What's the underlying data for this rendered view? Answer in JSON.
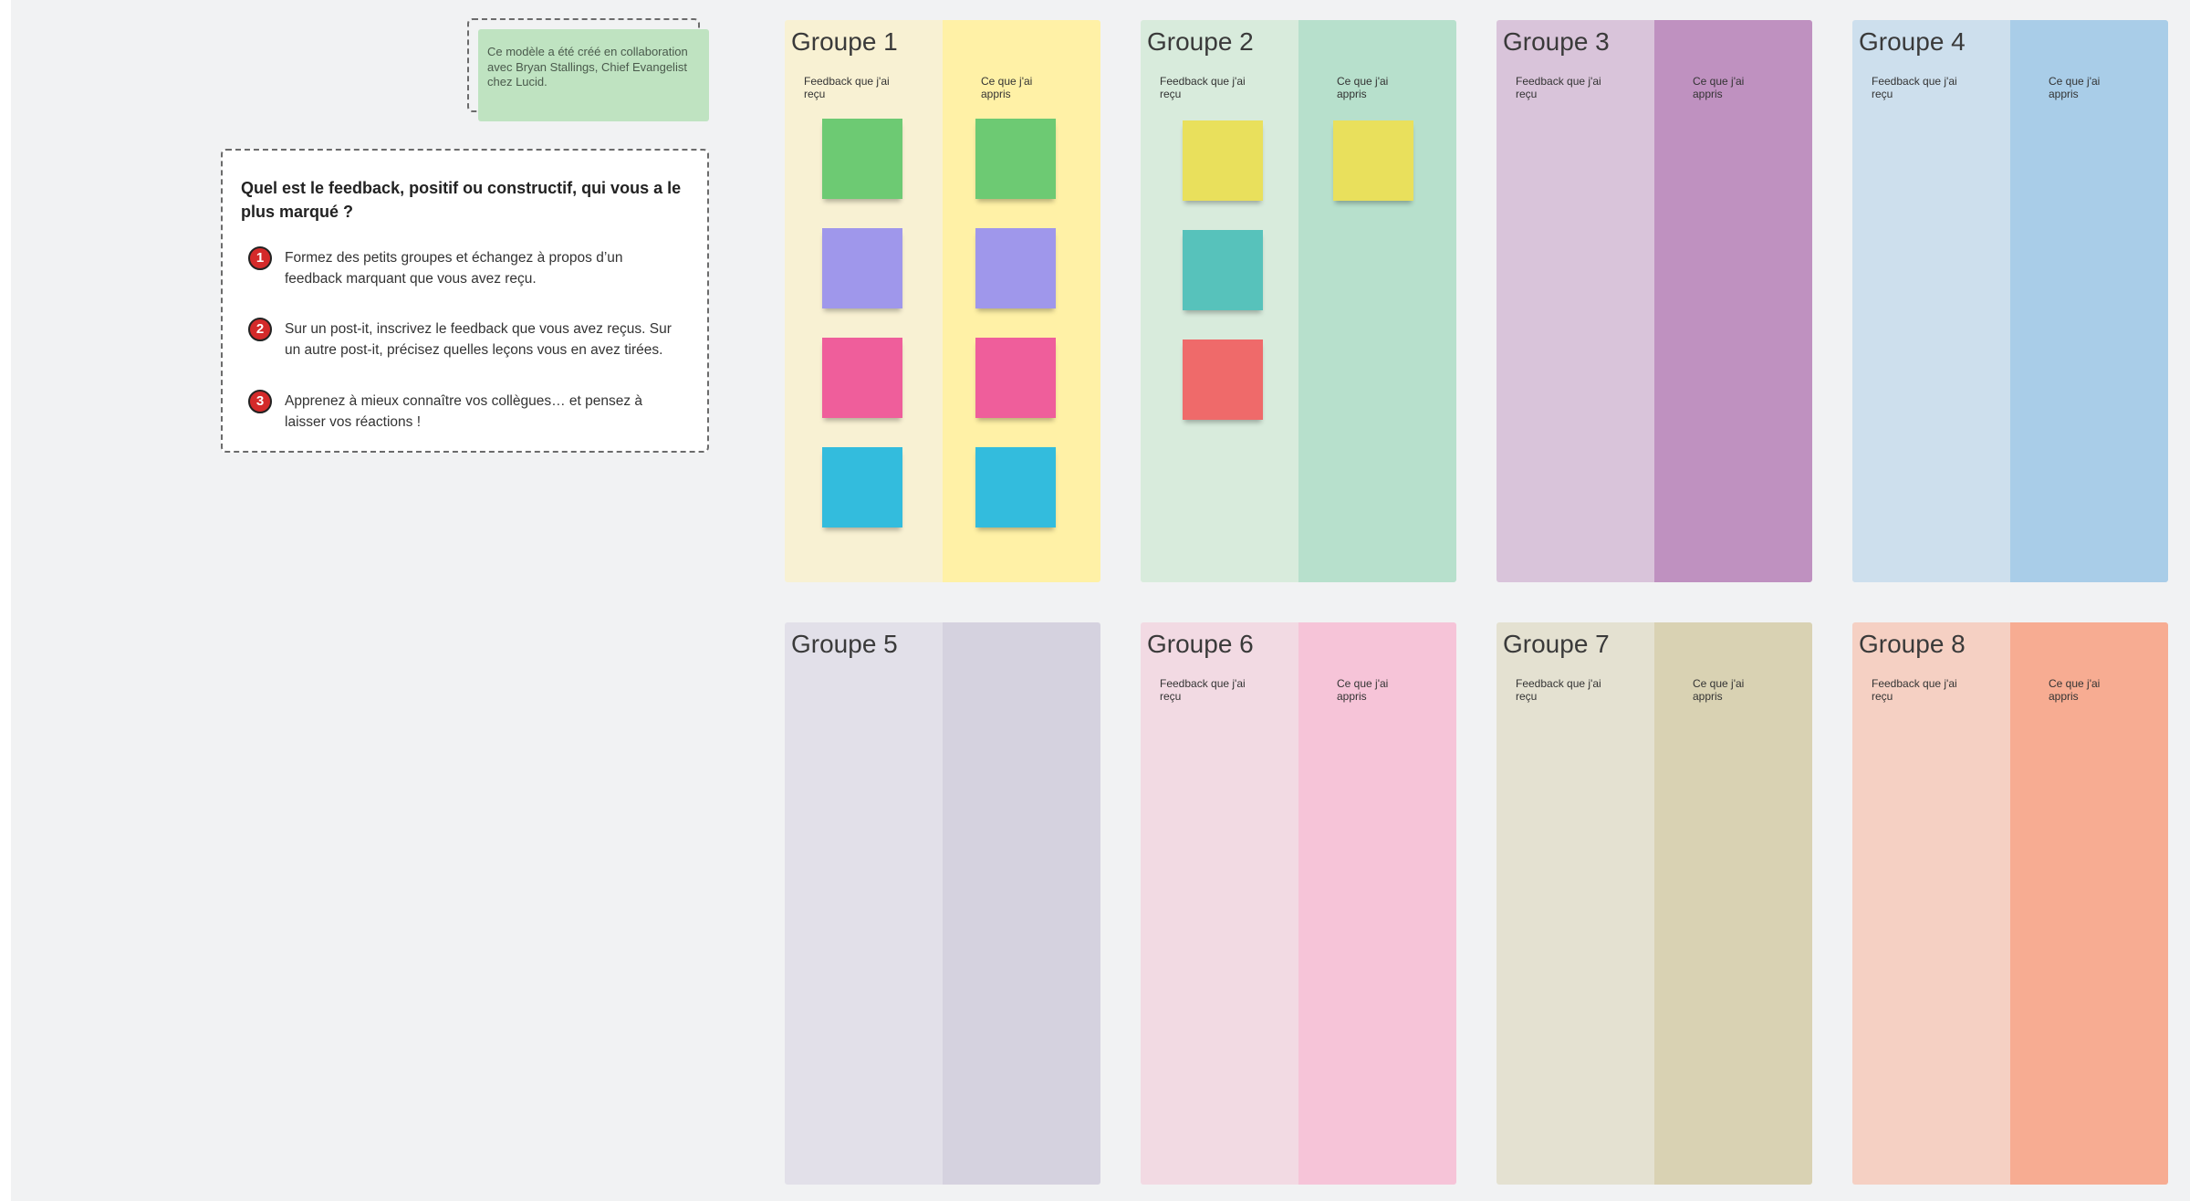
{
  "attribution": {
    "text": "Ce modèle a été créé en collaboration avec Bryan Stallings, Chief Evangelist chez Lucid."
  },
  "instructions": {
    "title": "Quel est le feedback, positif ou constructif, qui vous a le plus marqué ?",
    "steps": [
      {
        "number": "1",
        "text": "Formez des petits groupes et échangez à propos d’un feedback marquant que vous avez reçu."
      },
      {
        "number": "2",
        "text": "Sur un post-it, inscrivez le feedback que vous avez reçus. Sur un autre post-it, précisez quelles leçons vous en avez tirées."
      },
      {
        "number": "3",
        "text": "Apprenez à mieux connaître vos collègues… et pensez à laisser vos réactions !"
      }
    ]
  },
  "groups": [
    {
      "title": "Groupe 1",
      "left_label": "Feedback que j'ai reçu",
      "right_label": "Ce que j'ai appris",
      "left_color": "#f8f1d3",
      "right_color": "#fff1a6",
      "left_stickies": [
        "#6dca73",
        "#9f97eb",
        "#ef5e9b",
        "#33bcdd"
      ],
      "right_stickies": [
        "#6dca73",
        "#9f97eb",
        "#ef5e9b",
        "#33bcdd"
      ]
    },
    {
      "title": "Groupe 2",
      "left_label": "Feedback que j'ai reçu",
      "right_label": "Ce que j'ai appris",
      "left_color": "#d8ebdc",
      "right_color": "#b7e0cc",
      "left_stickies": [
        "#e9e05c",
        "#57c2bb",
        "#ef6a6a"
      ],
      "right_stickies": [
        "#e9e05c"
      ]
    },
    {
      "title": "Groupe 3",
      "left_label": "Feedback que j'ai reçu",
      "right_label": "Ce que j'ai appris",
      "left_color": "#d9c4da",
      "right_color": "#bf91c0",
      "left_stickies": [],
      "right_stickies": []
    },
    {
      "title": "Groupe 4",
      "left_label": "Feedback que j'ai reçu",
      "right_label": "Ce que j'ai appris",
      "left_color": "#cddfed",
      "right_color": "#a9cde8",
      "left_stickies": [],
      "right_stickies": []
    },
    {
      "title": "Groupe 5",
      "left_label": "",
      "right_label": "",
      "left_color": "#e2e0e9",
      "right_color": "#d5d2df",
      "left_stickies": [],
      "right_stickies": []
    },
    {
      "title": "Groupe 6",
      "left_label": "Feedback que j'ai reçu",
      "right_label": "Ce que j'ai appris",
      "left_color": "#f2dae3",
      "right_color": "#f6c4d8",
      "left_stickies": [],
      "right_stickies": []
    },
    {
      "title": "Groupe 7",
      "left_label": "Feedback que j'ai reçu",
      "right_label": "Ce que j'ai appris",
      "left_color": "#e4e1d1",
      "right_color": "#d9d2b3",
      "left_stickies": [],
      "right_stickies": []
    },
    {
      "title": "Groupe 8",
      "left_label": "Feedback que j'ai reçu",
      "right_label": "Ce que j'ai appris",
      "left_color": "#f5d0c3",
      "right_color": "#f7ac92",
      "left_stickies": [],
      "right_stickies": []
    }
  ]
}
